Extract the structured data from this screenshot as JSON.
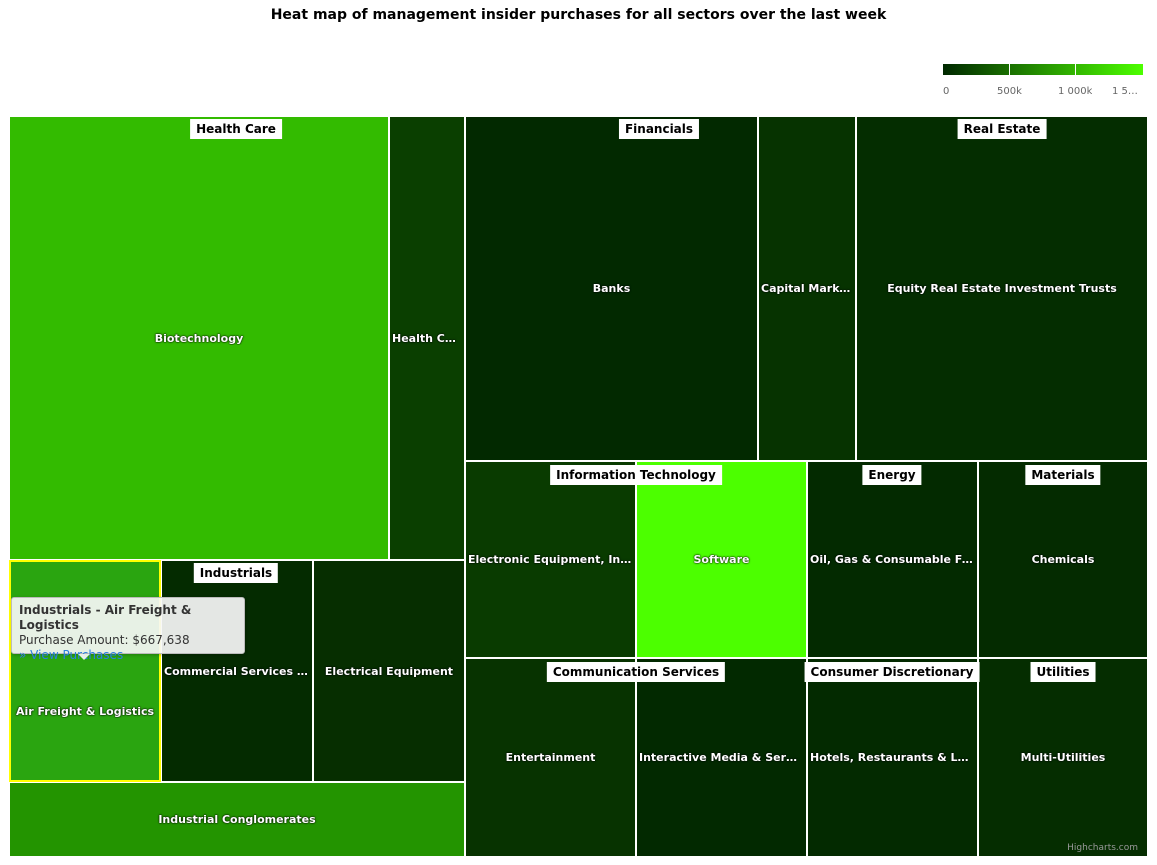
{
  "chart_data": {
    "type": "heatmap",
    "subtype": "treemap",
    "title": "Heat map of management insider purchases for all sectors over the last week",
    "color_axis": {
      "min": 0,
      "max": 1500000,
      "min_color": "#002800",
      "max_color": "#4cff00",
      "tick_labels": [
        "0",
        "500k",
        "1 000k",
        "1 5…"
      ]
    },
    "sectors": [
      {
        "name": "Health Care",
        "industries": [
          {
            "name": "Biotechnology",
            "label": "Biotechnology",
            "color": "#33bb00"
          },
          {
            "name": "Health Care Providers",
            "label": "Health Car…",
            "color": "#0a3f00"
          }
        ]
      },
      {
        "name": "Financials",
        "industries": [
          {
            "name": "Banks",
            "label": "Banks",
            "color": "#022900"
          },
          {
            "name": "Capital Markets",
            "label": "Capital Markets",
            "color": "#063300"
          }
        ]
      },
      {
        "name": "Real Estate",
        "industries": [
          {
            "name": "Equity Real Estate Investment Trusts",
            "label": "Equity Real Estate Investment Trusts",
            "color": "#042d00"
          }
        ]
      },
      {
        "name": "Industrials",
        "industries": [
          {
            "name": "Air Freight & Logistics",
            "label": "Air Freight & Logistics",
            "color": "#2aa510",
            "purchase": 667638
          },
          {
            "name": "Commercial Services & Supplies",
            "label": "Commercial Services & S…",
            "color": "#042b00"
          },
          {
            "name": "Electrical Equipment",
            "label": "Electrical Equipment",
            "color": "#062e00"
          },
          {
            "name": "Industrial Conglomerates",
            "label": "Industrial Conglomerates",
            "color": "#239400"
          }
        ]
      },
      {
        "name": "Information Technology",
        "industries": [
          {
            "name": "Electronic Equipment, Instruments & Components",
            "label": "Electronic Equipment, Instr…",
            "color": "#093b00"
          },
          {
            "name": "Software",
            "label": "Software",
            "color": "#4cff00"
          }
        ]
      },
      {
        "name": "Energy",
        "industries": [
          {
            "name": "Oil, Gas & Consumable Fuels",
            "label": "Oil, Gas & Consumable Fuels",
            "color": "#032a00"
          }
        ]
      },
      {
        "name": "Materials",
        "industries": [
          {
            "name": "Chemicals",
            "label": "Chemicals",
            "color": "#042b00"
          }
        ]
      },
      {
        "name": "Communication Services",
        "industries": [
          {
            "name": "Entertainment",
            "label": "Entertainment",
            "color": "#073300"
          },
          {
            "name": "Interactive Media & Services",
            "label": "Interactive Media & Services",
            "color": "#022900"
          }
        ]
      },
      {
        "name": "Consumer Discretionary",
        "industries": [
          {
            "name": "Hotels, Restaurants & Leisure",
            "label": "Hotels, Restaurants & Leisu…",
            "color": "#032a00"
          }
        ]
      },
      {
        "name": "Utilities",
        "industries": [
          {
            "name": "Multi-Utilities",
            "label": "Multi-Utilities",
            "color": "#052d00"
          }
        ]
      }
    ]
  },
  "tooltip": {
    "title": "Industrials - Air Freight & Logistics",
    "amount_line": "Purchase Amount: $667,638",
    "link": "» View Purchases"
  },
  "credits": "Highcharts.com"
}
